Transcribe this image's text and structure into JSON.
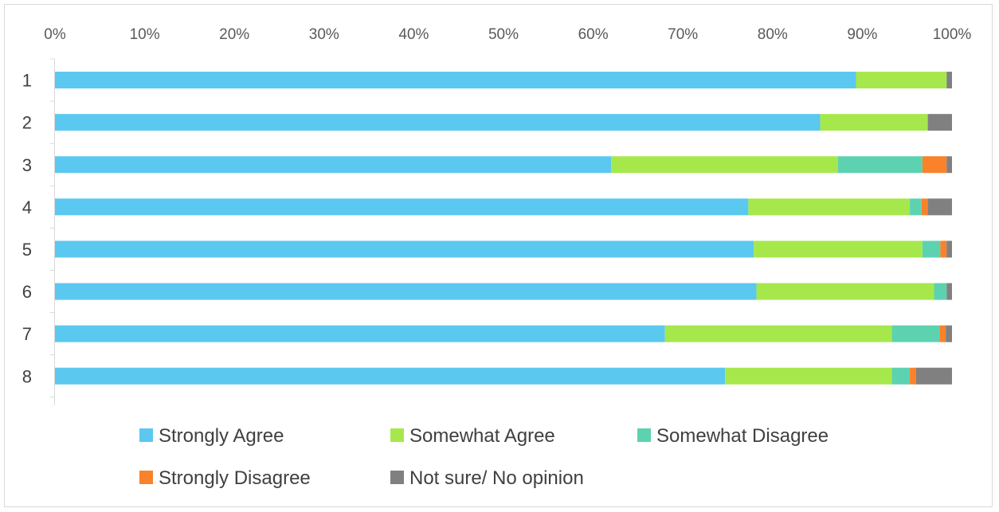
{
  "chart_data": {
    "type": "bar",
    "orientation": "horizontal",
    "stacked": true,
    "stack_mode": "percent",
    "title": "",
    "xlabel": "",
    "ylabel": "",
    "xlim": [
      0,
      100
    ],
    "x_ticks": [
      "0%",
      "10%",
      "20%",
      "30%",
      "40%",
      "50%",
      "60%",
      "70%",
      "80%",
      "90%",
      "100%"
    ],
    "x_axis_position": "top",
    "grid": false,
    "legend_position": "bottom",
    "categories": [
      "1",
      "2",
      "3",
      "4",
      "5",
      "6",
      "7",
      "8"
    ],
    "series": [
      {
        "name": "Strongly Agree",
        "color": "#5bc8f0",
        "values": [
          89.3,
          85.3,
          62.0,
          77.3,
          77.9,
          78.2,
          68.0,
          74.7
        ]
      },
      {
        "name": "Somewhat Agree",
        "color": "#a6e84c",
        "values": [
          10.1,
          12.0,
          25.3,
          18.0,
          18.8,
          19.8,
          25.3,
          18.6
        ]
      },
      {
        "name": "Somewhat Disagree",
        "color": "#5dd2b1",
        "values": [
          0.0,
          0.0,
          9.4,
          1.3,
          2.0,
          1.4,
          5.3,
          2.0
        ]
      },
      {
        "name": "Strongly Disagree",
        "color": "#f9822a",
        "values": [
          0.0,
          0.0,
          2.7,
          0.7,
          0.7,
          0.0,
          0.7,
          0.7
        ]
      },
      {
        "name": "Not sure/ No opinion",
        "color": "#808080",
        "values": [
          0.6,
          2.7,
          0.6,
          2.7,
          0.6,
          0.6,
          0.7,
          4.0
        ]
      }
    ]
  }
}
